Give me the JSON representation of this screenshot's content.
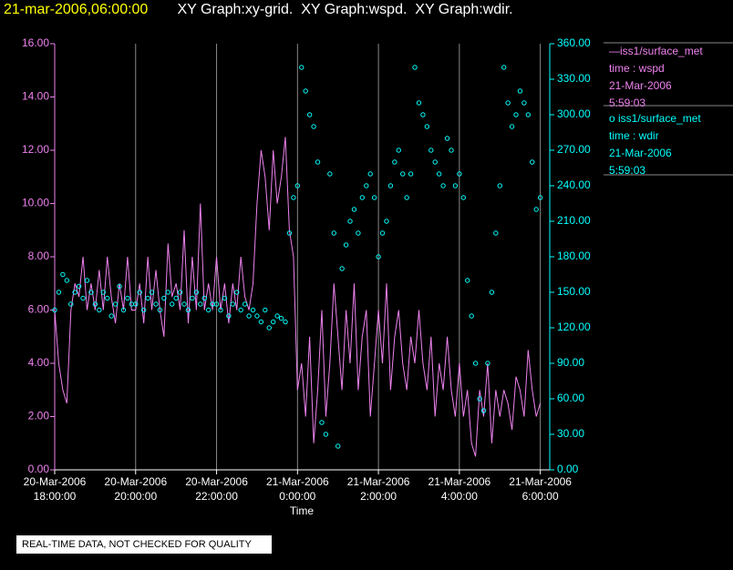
{
  "chart_data": {
    "type": "line",
    "title": "21-mar-2006,06:00:00",
    "subtitle": " XY Graph:xy-grid.  XY Graph:wspd.  XY Graph:wdir.",
    "xlabel": "Time",
    "footer": "REAL-TIME DATA, NOT CHECKED FOR QUALITY",
    "x": [
      "2006-03-20T18:00",
      "2006-03-20T18:06",
      "2006-03-20T18:12",
      "2006-03-20T18:18",
      "2006-03-20T18:24",
      "2006-03-20T18:30",
      "2006-03-20T18:36",
      "2006-03-20T18:42",
      "2006-03-20T18:48",
      "2006-03-20T18:54",
      "2006-03-20T19:00",
      "2006-03-20T19:06",
      "2006-03-20T19:12",
      "2006-03-20T19:18",
      "2006-03-20T19:24",
      "2006-03-20T19:30",
      "2006-03-20T19:36",
      "2006-03-20T19:42",
      "2006-03-20T19:48",
      "2006-03-20T19:54",
      "2006-03-20T20:00",
      "2006-03-20T20:06",
      "2006-03-20T20:12",
      "2006-03-20T20:18",
      "2006-03-20T20:24",
      "2006-03-20T20:30",
      "2006-03-20T20:36",
      "2006-03-20T20:42",
      "2006-03-20T20:48",
      "2006-03-20T20:54",
      "2006-03-20T21:00",
      "2006-03-20T21:06",
      "2006-03-20T21:12",
      "2006-03-20T21:18",
      "2006-03-20T21:24",
      "2006-03-20T21:30",
      "2006-03-20T21:36",
      "2006-03-20T21:42",
      "2006-03-20T21:48",
      "2006-03-20T21:54",
      "2006-03-20T22:00",
      "2006-03-20T22:06",
      "2006-03-20T22:12",
      "2006-03-20T22:18",
      "2006-03-20T22:24",
      "2006-03-20T22:30",
      "2006-03-20T22:36",
      "2006-03-20T22:42",
      "2006-03-20T22:48",
      "2006-03-20T22:54",
      "2006-03-20T23:00",
      "2006-03-20T23:06",
      "2006-03-20T23:12",
      "2006-03-20T23:18",
      "2006-03-20T23:24",
      "2006-03-20T23:30",
      "2006-03-20T23:36",
      "2006-03-20T23:42",
      "2006-03-20T23:48",
      "2006-03-20T23:54",
      "2006-03-21T00:00",
      "2006-03-21T00:06",
      "2006-03-21T00:12",
      "2006-03-21T00:18",
      "2006-03-21T00:24",
      "2006-03-21T00:30",
      "2006-03-21T00:36",
      "2006-03-21T00:42",
      "2006-03-21T00:48",
      "2006-03-21T00:54",
      "2006-03-21T01:00",
      "2006-03-21T01:06",
      "2006-03-21T01:12",
      "2006-03-21T01:18",
      "2006-03-21T01:24",
      "2006-03-21T01:30",
      "2006-03-21T01:36",
      "2006-03-21T01:42",
      "2006-03-21T01:48",
      "2006-03-21T01:54",
      "2006-03-21T02:00",
      "2006-03-21T02:06",
      "2006-03-21T02:12",
      "2006-03-21T02:18",
      "2006-03-21T02:24",
      "2006-03-21T02:30",
      "2006-03-21T02:36",
      "2006-03-21T02:42",
      "2006-03-21T02:48",
      "2006-03-21T02:54",
      "2006-03-21T03:00",
      "2006-03-21T03:06",
      "2006-03-21T03:12",
      "2006-03-21T03:18",
      "2006-03-21T03:24",
      "2006-03-21T03:30",
      "2006-03-21T03:36",
      "2006-03-21T03:42",
      "2006-03-21T03:48",
      "2006-03-21T03:54",
      "2006-03-21T04:00",
      "2006-03-21T04:06",
      "2006-03-21T04:12",
      "2006-03-21T04:18",
      "2006-03-21T04:24",
      "2006-03-21T04:30",
      "2006-03-21T04:36",
      "2006-03-21T04:42",
      "2006-03-21T04:48",
      "2006-03-21T04:54",
      "2006-03-21T05:00",
      "2006-03-21T05:06",
      "2006-03-21T05:12",
      "2006-03-21T05:18",
      "2006-03-21T05:24",
      "2006-03-21T05:30",
      "2006-03-21T05:36",
      "2006-03-21T05:42",
      "2006-03-21T05:48",
      "2006-03-21T05:54",
      "2006-03-21T06:00"
    ],
    "series": [
      {
        "name": [
          "—iss1/surface_met",
          "time : wspd",
          "21-Mar-2006",
          "5:59:03"
        ],
        "color": "#ee82ee",
        "style": "line",
        "values": [
          6,
          4,
          3,
          2.5,
          6,
          7,
          6.5,
          8,
          6,
          7,
          6,
          7.5,
          6,
          8,
          6.5,
          5.5,
          7,
          6,
          8,
          6,
          6,
          7,
          5.5,
          8,
          6,
          7.5,
          6,
          5,
          8.5,
          6.5,
          7,
          6,
          9,
          5.5,
          8,
          6,
          10,
          6,
          7,
          6,
          8,
          6,
          7,
          5.5,
          7,
          6,
          8,
          6.5,
          6,
          7,
          10,
          12,
          11,
          9,
          12,
          10,
          11,
          12.5,
          9,
          8,
          3,
          4,
          2,
          5,
          1,
          3,
          6,
          2,
          4,
          7,
          5,
          3,
          6,
          4,
          7,
          3,
          5,
          6,
          2,
          4,
          6,
          4,
          7,
          3,
          5,
          6,
          4,
          3,
          5,
          4,
          6,
          4,
          3,
          5,
          2,
          4,
          3,
          5,
          3,
          2,
          4,
          2,
          3,
          1,
          0.5,
          3,
          2,
          4,
          1,
          3,
          2,
          3,
          2.5,
          1.5,
          3.5,
          3,
          2,
          4.5,
          3,
          2,
          2.5
        ]
      },
      {
        "name": [
          "o iss1/surface_met",
          "time : wdir",
          "21-Mar-2006",
          "5:59:03"
        ],
        "color": "#00ffff",
        "style": "scatter",
        "axis": "y2",
        "values": [
          135,
          150,
          165,
          160,
          140,
          150,
          155,
          145,
          160,
          150,
          140,
          135,
          150,
          145,
          130,
          140,
          155,
          135,
          145,
          140,
          140,
          150,
          135,
          145,
          150,
          140,
          135,
          145,
          150,
          140,
          145,
          150,
          140,
          135,
          145,
          150,
          140,
          145,
          135,
          140,
          140,
          135,
          145,
          130,
          140,
          150,
          135,
          140,
          130,
          135,
          130,
          125,
          135,
          120,
          125,
          130,
          128,
          125,
          200,
          230,
          240,
          340,
          320,
          300,
          290,
          260,
          40,
          30,
          250,
          200,
          20,
          170,
          190,
          210,
          220,
          200,
          230,
          240,
          250,
          230,
          180,
          200,
          210,
          240,
          260,
          270,
          250,
          230,
          250,
          340,
          310,
          300,
          290,
          270,
          260,
          250,
          240,
          280,
          270,
          240,
          250,
          230,
          160,
          130,
          90,
          60,
          50,
          90,
          150,
          200,
          240,
          340,
          310,
          290,
          300,
          320,
          310,
          300,
          260,
          220,
          230
        ]
      }
    ],
    "xlim": [
      "2006-03-20T18:00",
      "2006-03-21T06:14"
    ],
    "xticks": [
      {
        "value": "2006-03-20T18:00",
        "label": [
          "20-Mar-2006",
          "18:00:00"
        ]
      },
      {
        "value": "2006-03-20T20:00",
        "label": [
          "20-Mar-2006",
          "20:00:00"
        ]
      },
      {
        "value": "2006-03-20T22:00",
        "label": [
          "20-Mar-2006",
          "22:00:00"
        ]
      },
      {
        "value": "2006-03-21T00:00",
        "label": [
          "21-Mar-2006",
          "0:00:00"
        ]
      },
      {
        "value": "2006-03-21T02:00",
        "label": [
          "21-Mar-2006",
          "2:00:00"
        ]
      },
      {
        "value": "2006-03-21T04:00",
        "label": [
          "21-Mar-2006",
          "4:00:00"
        ]
      },
      {
        "value": "2006-03-21T06:00",
        "label": [
          "21-Mar-2006",
          "6:00:00"
        ]
      }
    ],
    "ylim": [
      0,
      16
    ],
    "yticks": [
      {
        "value": 0,
        "label": "0.00"
      },
      {
        "value": 2,
        "label": "2.00"
      },
      {
        "value": 4,
        "label": "4.00"
      },
      {
        "value": 6,
        "label": "6.00"
      },
      {
        "value": 8,
        "label": "8.00"
      },
      {
        "value": 10,
        "label": "10.00"
      },
      {
        "value": 12,
        "label": "12.00"
      },
      {
        "value": 14,
        "label": "14.00"
      },
      {
        "value": 16,
        "label": "16.00"
      }
    ],
    "y2lim": [
      0,
      360
    ],
    "y2ticks": [
      {
        "value": 0,
        "label": "0.00"
      },
      {
        "value": 30,
        "label": "30.00"
      },
      {
        "value": 60,
        "label": "60.00"
      },
      {
        "value": 90,
        "label": "90.00"
      },
      {
        "value": 120,
        "label": "120.00"
      },
      {
        "value": 150,
        "label": "150.00"
      },
      {
        "value": 180,
        "label": "180.00"
      },
      {
        "value": 210,
        "label": "210.00"
      },
      {
        "value": 240,
        "label": "240.00"
      },
      {
        "value": 270,
        "label": "270.00"
      },
      {
        "value": 300,
        "label": "300.00"
      },
      {
        "value": 330,
        "label": "330.00"
      },
      {
        "value": 360,
        "label": "360.00"
      }
    ],
    "grid": "x"
  }
}
